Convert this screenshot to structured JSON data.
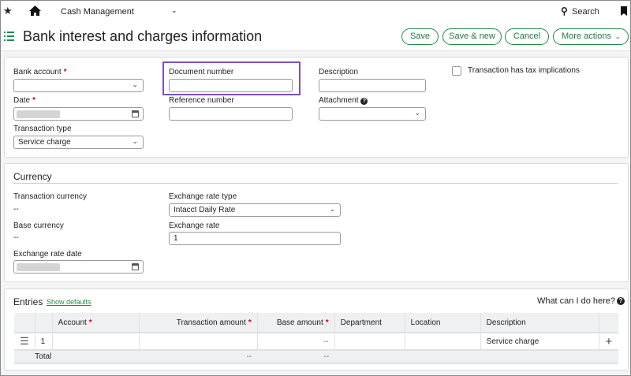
{
  "topbar": {
    "module": "Cash Management",
    "search": "Search"
  },
  "header": {
    "title": "Bank interest and charges information",
    "buttons": {
      "save": "Save",
      "save_new": "Save & new",
      "cancel": "Cancel",
      "more": "More actions"
    }
  },
  "colors": {
    "accent": "#1f8a4c",
    "highlight": "#7e4ec2",
    "required": "#d0021b"
  },
  "form": {
    "bank_account": {
      "label": "Bank account",
      "value": ""
    },
    "date": {
      "label": "Date"
    },
    "transaction_type": {
      "label": "Transaction type",
      "value": "Service charge"
    },
    "document_number": {
      "label": "Document number",
      "value": ""
    },
    "reference_number": {
      "label": "Reference number",
      "value": ""
    },
    "description": {
      "label": "Description",
      "value": ""
    },
    "attachment": {
      "label": "Attachment",
      "value": ""
    },
    "tax_checkbox": {
      "label": "Transaction has tax implications",
      "checked": false
    }
  },
  "currency": {
    "title": "Currency",
    "transaction_currency": {
      "label": "Transaction currency",
      "value": "--"
    },
    "base_currency": {
      "label": "Base currency",
      "value": "--"
    },
    "exchange_rate_date": {
      "label": "Exchange rate date"
    },
    "exchange_rate_type": {
      "label": "Exchange rate type",
      "value": "Intacct Daily Rate"
    },
    "exchange_rate": {
      "label": "Exchange rate",
      "value": "1"
    }
  },
  "entries": {
    "title": "Entries",
    "show_defaults": "Show defaults",
    "help": "What can I do here?",
    "columns": {
      "account": "Account",
      "transaction_amount": "Transaction amount",
      "base_amount": "Base amount",
      "department": "Department",
      "location": "Location",
      "description": "Description"
    },
    "rows": [
      {
        "num": "1",
        "account": "",
        "transaction_amount": "",
        "base_amount": "--",
        "department": "",
        "location": "",
        "description": "Service charge"
      }
    ],
    "total": {
      "label": "Total",
      "transaction_amount": "--",
      "base_amount": "--"
    }
  }
}
